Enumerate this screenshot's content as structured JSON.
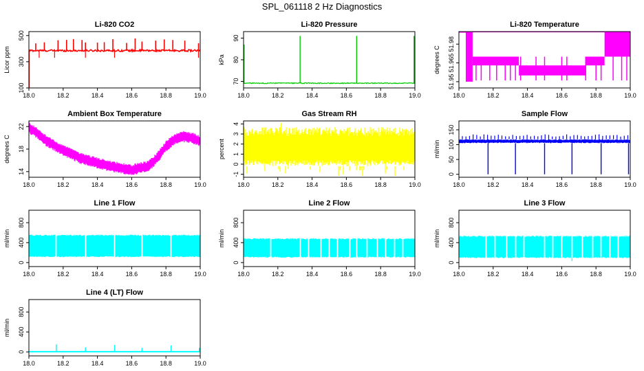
{
  "page_title": "SPL_061118  2 Hz Diagnostics",
  "colors": {
    "red": "#ff0000",
    "green": "#00cc00",
    "magenta": "#ff00ff",
    "yellow": "#ffff00",
    "blue": "#0000ff",
    "cyan": "#00ffff"
  },
  "chart_data": [
    {
      "type": "line",
      "title": "Li-820 CO2",
      "xlabel": "",
      "ylabel": "Licor ppm",
      "xlim": [
        18.0,
        19.0
      ],
      "ylim": [
        100,
        530
      ],
      "xticks": [
        18.0,
        18.2,
        18.4,
        18.6,
        18.8,
        19.0
      ],
      "xtick_labels": [
        "18.0",
        "18.2",
        "18.4",
        "18.6",
        "18.8",
        "19.0"
      ],
      "yticks": [
        100,
        300,
        500
      ],
      "ytick_labels": [
        "100",
        "300",
        "500"
      ],
      "color": "red",
      "series": [
        {
          "name": "CO2",
          "baseline": 385,
          "spikes_up": [
            18.04,
            18.09,
            18.17,
            18.22,
            18.26,
            18.31,
            18.33,
            18.4,
            18.44,
            18.49,
            18.57,
            18.62,
            18.66,
            18.74,
            18.79,
            18.84,
            18.91,
            18.99
          ],
          "spike_up_value": 480,
          "dips": [
            18.0,
            18.06,
            18.15,
            18.33,
            18.5,
            18.99
          ],
          "dip_value": 330,
          "x_end_min_value": 100
        }
      ]
    },
    {
      "type": "line",
      "title": "Li-820 Pressure",
      "xlabel": "",
      "ylabel": "kPa",
      "xlim": [
        18.0,
        19.0
      ],
      "ylim": [
        67,
        93
      ],
      "xticks": [
        18.0,
        18.2,
        18.4,
        18.6,
        18.8,
        19.0
      ],
      "xtick_labels": [
        "18.0",
        "18.2",
        "18.4",
        "18.6",
        "18.8",
        "19.0"
      ],
      "yticks": [
        70,
        80,
        90
      ],
      "ytick_labels": [
        "70",
        "80",
        "90"
      ],
      "color": "green",
      "series": [
        {
          "name": "Pressure",
          "baseline": 69.2,
          "spikes_up": [
            18.0,
            18.33,
            18.66,
            18.99
          ],
          "spike_values": [
            87,
            91,
            91,
            91
          ]
        }
      ]
    },
    {
      "type": "area",
      "title": "Li-820 Temperature",
      "xlabel": "",
      "ylabel": "degrees C",
      "xlim": [
        18.0,
        19.0
      ],
      "ylim": [
        51.945,
        51.99
      ],
      "xticks": [
        18.0,
        18.2,
        18.4,
        18.6,
        18.8,
        19.0
      ],
      "xtick_labels": [
        "18.0",
        "18.2",
        "18.4",
        "18.6",
        "18.8",
        "19.0"
      ],
      "yticks": [
        51.95,
        51.965,
        51.98
      ],
      "ytick_labels": [
        "51.95",
        "51.965",
        "51.98"
      ],
      "color": "magenta",
      "series": [
        {
          "name": "Temperature",
          "segments": [
            {
              "x0": 18.0,
              "x1": 18.04,
              "lo": 51.99,
              "hi": 51.99
            },
            {
              "x0": 18.04,
              "x1": 18.08,
              "lo": 51.95,
              "hi": 51.99
            },
            {
              "x0": 18.08,
              "x1": 18.35,
              "lo": 51.963,
              "hi": 51.97
            },
            {
              "x0": 18.35,
              "x1": 18.74,
              "lo": 51.955,
              "hi": 51.963
            },
            {
              "x0": 18.74,
              "x1": 18.85,
              "lo": 51.963,
              "hi": 51.97
            },
            {
              "x0": 18.85,
              "x1": 19.0,
              "lo": 51.97,
              "hi": 51.99
            }
          ]
        }
      ]
    },
    {
      "type": "line",
      "title": "Ambient Box Temperature",
      "xlabel": "",
      "ylabel": "degrees C",
      "xlim": [
        18.0,
        19.0
      ],
      "ylim": [
        13,
        23
      ],
      "xticks": [
        18.0,
        18.2,
        18.4,
        18.6,
        18.8,
        19.0
      ],
      "xtick_labels": [
        "18.0",
        "18.2",
        "18.4",
        "18.6",
        "18.8",
        "19.0"
      ],
      "yticks": [
        14,
        18,
        22
      ],
      "ytick_labels": [
        "14",
        "18",
        "22"
      ],
      "color": "magenta",
      "series": [
        {
          "name": "Ambient",
          "x": [
            18.0,
            18.05,
            18.1,
            18.2,
            18.3,
            18.4,
            18.5,
            18.6,
            18.7,
            18.75,
            18.8,
            18.85,
            18.9,
            18.95,
            19.0
          ],
          "y": [
            21.8,
            20.8,
            19.5,
            17.8,
            16.4,
            15.5,
            14.8,
            14.3,
            15.0,
            16.5,
            18.5,
            19.8,
            20.2,
            20.0,
            19.4
          ],
          "band": 1.2
        }
      ]
    },
    {
      "type": "area",
      "title": "Gas Stream RH",
      "xlabel": "",
      "ylabel": "percent",
      "xlim": [
        18.0,
        19.0
      ],
      "ylim": [
        -1.3,
        4.3
      ],
      "xticks": [
        18.0,
        18.2,
        18.4,
        18.6,
        18.8,
        19.0
      ],
      "xtick_labels": [
        "18.0",
        "18.2",
        "18.4",
        "18.6",
        "18.8",
        "19.0"
      ],
      "yticks": [
        -1,
        1,
        3
      ],
      "ytick_labels": [
        "-1",
        "1",
        "3"
      ],
      "yticks_minor": [
        0,
        2,
        4
      ],
      "ytick_minor_labels": [
        "0",
        "2",
        "4"
      ],
      "color": "yellow",
      "series": [
        {
          "name": "RH",
          "lo": -0.2,
          "hi": 3.7,
          "outlier_min": -1.2,
          "outlier_max": 4.1
        }
      ]
    },
    {
      "type": "line",
      "title": "Sample Flow",
      "xlabel": "",
      "ylabel": "ml/min",
      "xlim": [
        18.0,
        19.0
      ],
      "ylim": [
        -10,
        180
      ],
      "xticks": [
        18.0,
        18.2,
        18.4,
        18.6,
        18.8,
        19.0
      ],
      "xtick_labels": [
        "18.0",
        "18.2",
        "18.4",
        "18.6",
        "18.8",
        "19.0"
      ],
      "yticks": [
        0,
        50,
        100,
        150
      ],
      "ytick_labels": [
        "0",
        "50",
        "100",
        "150"
      ],
      "color": "blue",
      "series": [
        {
          "name": "Sample Flow",
          "baseline_lo": 105,
          "baseline_hi": 118,
          "spike_value": 135,
          "dips": [
            18.17,
            18.33,
            18.5,
            18.66,
            18.83,
            18.99
          ],
          "dip_value": 0
        }
      ]
    },
    {
      "type": "area",
      "title": "Line 1 Flow",
      "xlabel": "",
      "ylabel": "ml/min",
      "xlim": [
        18.0,
        19.0
      ],
      "ylim": [
        -80,
        1050
      ],
      "xticks": [
        18.0,
        18.2,
        18.4,
        18.6,
        18.8,
        19.0
      ],
      "xtick_labels": [
        "18.0",
        "18.2",
        "18.4",
        "18.6",
        "18.8",
        "19.0"
      ],
      "yticks": [
        0,
        400,
        800
      ],
      "ytick_labels": [
        "0",
        "400",
        "800"
      ],
      "color": "cyan",
      "series": [
        {
          "name": "Line 1",
          "lo": 110,
          "hi": 560,
          "gaps": [
            18.16,
            18.33,
            18.5,
            18.66,
            18.83
          ]
        }
      ]
    },
    {
      "type": "area",
      "title": "Line 2 Flow",
      "xlabel": "",
      "ylabel": "ml/min",
      "xlim": [
        18.0,
        19.0
      ],
      "ylim": [
        -80,
        1050
      ],
      "xticks": [
        18.0,
        18.2,
        18.4,
        18.6,
        18.8,
        19.0
      ],
      "xtick_labels": [
        "18.0",
        "18.2",
        "18.4",
        "18.6",
        "18.8",
        "19.0"
      ],
      "yticks": [
        0,
        400,
        800
      ],
      "ytick_labels": [
        "0",
        "400",
        "800"
      ],
      "color": "cyan",
      "series": [
        {
          "name": "Line 2",
          "lo": 100,
          "hi": 490,
          "gaps": [
            18.16,
            18.33,
            18.38,
            18.45,
            18.5,
            18.55,
            18.62,
            18.66,
            18.72,
            18.78,
            18.83,
            18.88,
            18.93
          ]
        }
      ]
    },
    {
      "type": "area",
      "title": "Line 3 Flow",
      "xlabel": "",
      "ylabel": "ml/min",
      "xlim": [
        18.0,
        19.0
      ],
      "ylim": [
        -80,
        1050
      ],
      "xticks": [
        18.0,
        18.2,
        18.4,
        18.6,
        18.8,
        19.0
      ],
      "xtick_labels": [
        "18.0",
        "18.2",
        "18.4",
        "18.6",
        "18.8",
        "19.0"
      ],
      "yticks": [
        0,
        400,
        800
      ],
      "ytick_labels": [
        "0",
        "400",
        "800"
      ],
      "color": "cyan",
      "series": [
        {
          "name": "Line 3",
          "lo": 90,
          "hi": 540,
          "gaps": [
            18.16,
            18.21,
            18.28,
            18.33,
            18.38,
            18.5,
            18.55,
            18.6,
            18.66,
            18.72,
            18.78,
            18.83,
            18.88,
            18.93
          ]
        }
      ]
    },
    {
      "type": "line",
      "title": "Line 4 (LT) Flow",
      "xlabel": "",
      "ylabel": "ml/min",
      "xlim": [
        18.0,
        19.0
      ],
      "ylim": [
        -80,
        1050
      ],
      "xticks": [
        18.0,
        18.2,
        18.4,
        18.6,
        18.8,
        19.0
      ],
      "xtick_labels": [
        "18.0",
        "18.2",
        "18.4",
        "18.6",
        "18.8",
        "19.0"
      ],
      "yticks": [
        0,
        400,
        800
      ],
      "ytick_labels": [
        "0",
        "400",
        "800"
      ],
      "color": "cyan",
      "series": [
        {
          "name": "Line 4",
          "baseline": 5,
          "spikes_up": [
            18.16,
            18.33,
            18.5,
            18.66,
            18.83,
            18.99
          ],
          "spike_values": [
            150,
            90,
            140,
            80,
            130,
            80
          ]
        }
      ]
    }
  ]
}
